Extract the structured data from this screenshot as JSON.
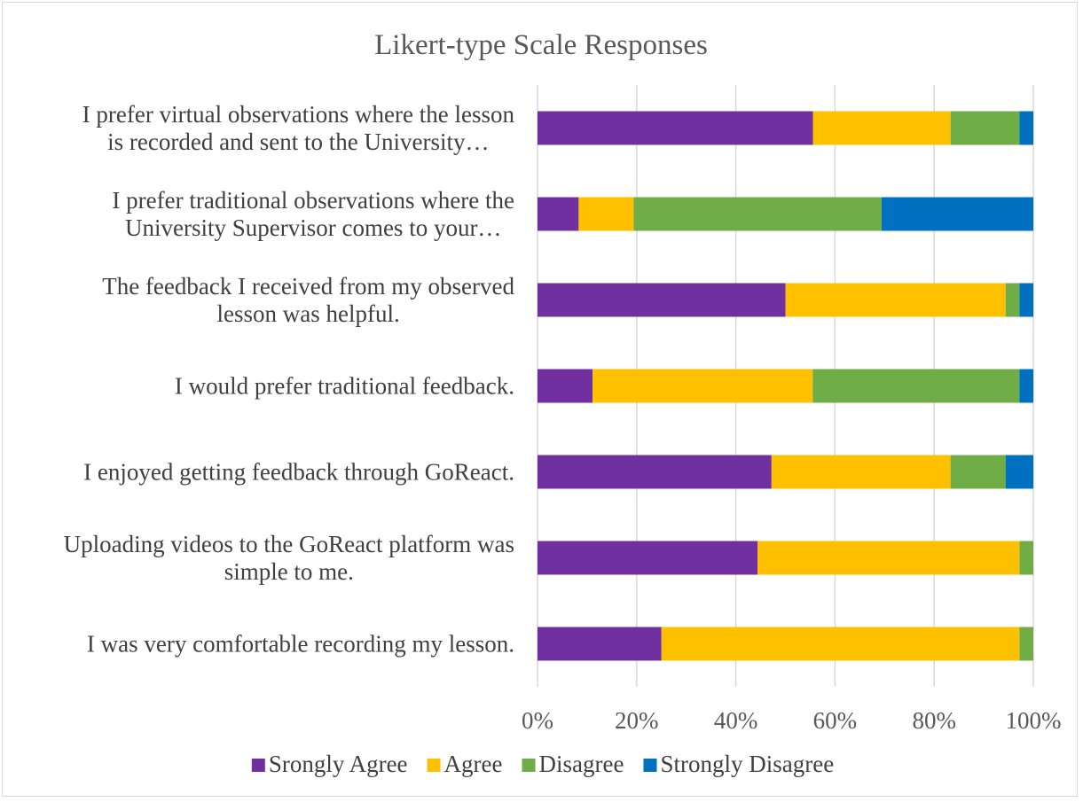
{
  "chart_data": {
    "type": "bar",
    "orientation": "horizontal",
    "stacked": "percent",
    "title": "Likert-type Scale Responses",
    "categories": [
      [
        "I prefer virtual observations where the lesson",
        "is recorded and sent to the University…"
      ],
      [
        "I prefer traditional observations where the",
        "University Supervisor comes to your…"
      ],
      [
        "The feedback I received from my observed",
        "lesson was helpful."
      ],
      [
        "I would prefer traditional feedback."
      ],
      [
        "I enjoyed getting feedback through GoReact."
      ],
      [
        "Uploading videos to the GoReact platform was",
        "simple to me."
      ],
      [
        "I was very comfortable recording my lesson."
      ]
    ],
    "series": [
      {
        "name": "Srongly Agree",
        "color": "#7030a0",
        "values": [
          55.6,
          8.3,
          50.0,
          11.1,
          47.2,
          44.4,
          25.0
        ]
      },
      {
        "name": "Agree",
        "color": "#ffc000",
        "values": [
          27.8,
          11.1,
          44.4,
          44.4,
          36.1,
          52.8,
          72.2
        ]
      },
      {
        "name": "Disagree",
        "color": "#70ad47",
        "values": [
          13.9,
          50.0,
          2.8,
          41.7,
          11.1,
          2.8,
          2.8
        ]
      },
      {
        "name": "Strongly Disagree",
        "color": "#0070c0",
        "values": [
          2.8,
          30.6,
          2.8,
          2.8,
          5.6,
          0.0,
          0.0
        ]
      }
    ],
    "xlim": [
      0,
      100
    ],
    "xticks": [
      "0%",
      "20%",
      "40%",
      "60%",
      "80%",
      "100%"
    ],
    "grid": true,
    "legend_position": "bottom"
  }
}
